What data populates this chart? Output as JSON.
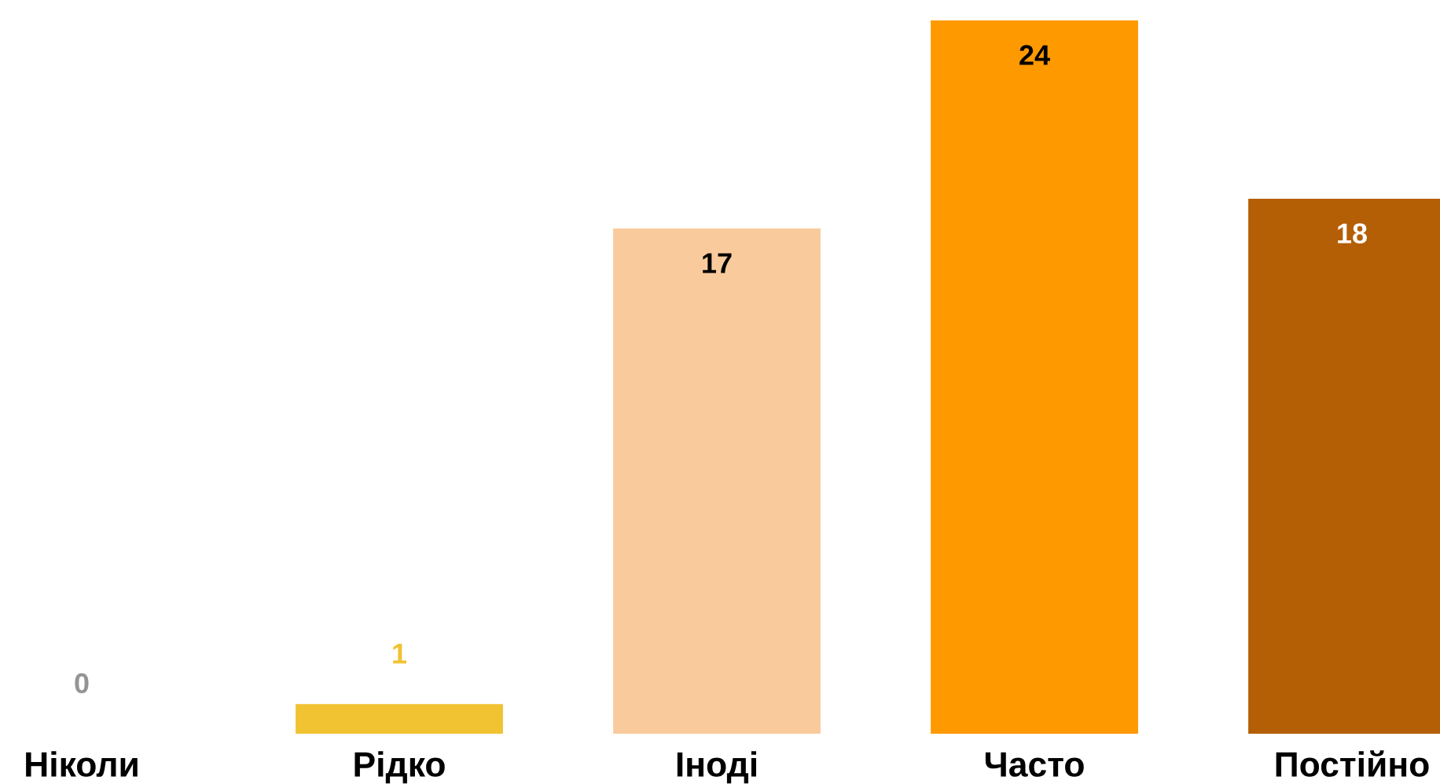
{
  "chart_data": {
    "type": "bar",
    "categories": [
      "Ніколи",
      "Рідко",
      "Іноді",
      "Часто",
      "Постійно"
    ],
    "values": [
      0,
      1,
      17,
      24,
      18
    ],
    "colors": [
      "#d9d9d9",
      "#f1c232",
      "#f9cb9c",
      "#ff9900",
      "#b45f06"
    ],
    "data_labels": true
  }
}
